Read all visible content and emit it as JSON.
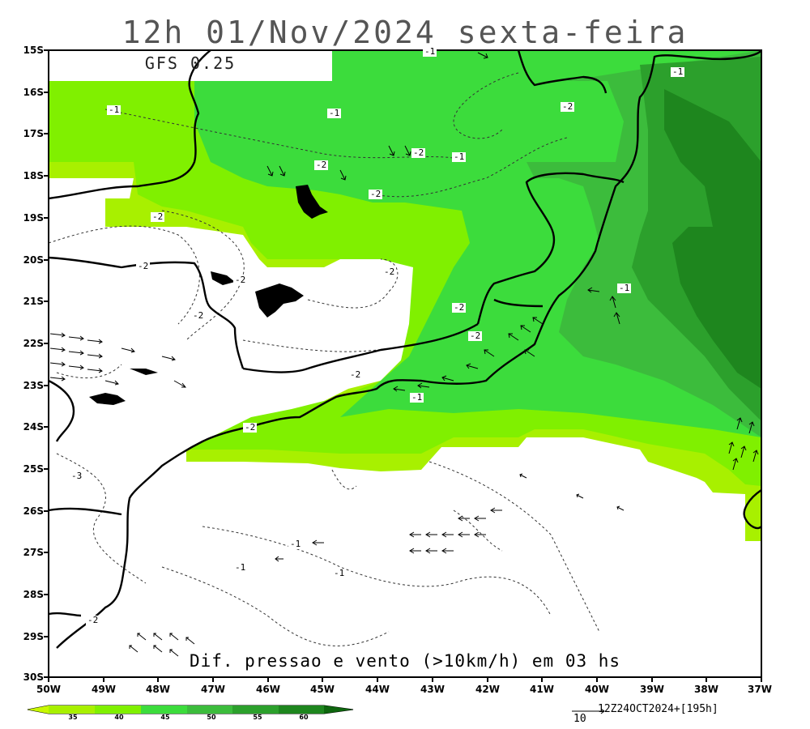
{
  "title": "12h 01/Nov/2024 sexta-feira",
  "model": "GFS 0.25",
  "caption": "Dif. pressao e vento (>10km/h) em 03 hs",
  "credit": "12Z24OCT2024+[195h]",
  "reference_vector_value": "10",
  "lat_labels": [
    "15S",
    "16S",
    "17S",
    "18S",
    "19S",
    "20S",
    "21S",
    "22S",
    "23S",
    "24S",
    "25S",
    "26S",
    "27S",
    "28S",
    "29S",
    "30S"
  ],
  "lon_labels": [
    "50W",
    "49W",
    "48W",
    "47W",
    "46W",
    "45W",
    "44W",
    "43W",
    "42W",
    "41W",
    "40W",
    "39W",
    "38W",
    "37W"
  ],
  "colorbar": {
    "ticks": [
      "35",
      "40",
      "45",
      "50",
      "55",
      "60"
    ],
    "colors": [
      "#a8f000",
      "#80f000",
      "#3cdc3c",
      "#3cbc3c",
      "#2ca02c",
      "#1e861e"
    ]
  },
  "contour_labels": [
    {
      "text": "-1"
    },
    {
      "text": "-1"
    },
    {
      "text": "-2"
    },
    {
      "text": "-1"
    },
    {
      "text": "-1"
    },
    {
      "text": "-2"
    },
    {
      "text": "-1"
    },
    {
      "text": "-2"
    },
    {
      "text": "-2"
    },
    {
      "text": "-2"
    },
    {
      "text": "-2"
    },
    {
      "text": "-2"
    },
    {
      "text": "-2"
    },
    {
      "text": "-2"
    },
    {
      "text": "-2"
    },
    {
      "text": "-1"
    },
    {
      "text": "-2"
    },
    {
      "text": "-2"
    },
    {
      "text": "-2"
    },
    {
      "text": "-1"
    },
    {
      "text": "-3"
    },
    {
      "text": "-1"
    },
    {
      "text": "-1"
    },
    {
      "text": "-1"
    },
    {
      "text": "-2"
    }
  ]
}
